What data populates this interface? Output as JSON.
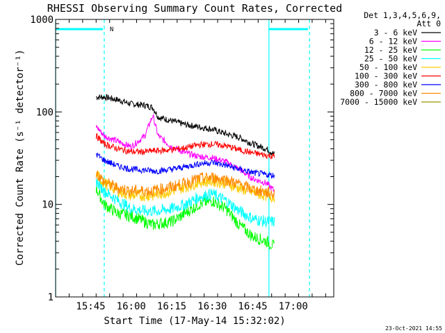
{
  "chart_data": {
    "type": "line",
    "title": "RHESSI Observing Summary Count Rates, Corrected",
    "xlabel": "Start Time (17-May-14 15:32:02)",
    "ylabel": "Corrected Count Rate (s⁻¹ detector⁻¹)",
    "y_scale": "log",
    "ylim": [
      1,
      1000
    ],
    "xlim": [
      "15:32",
      "17:15"
    ],
    "x_ticks": [
      "15:45",
      "16:00",
      "16:15",
      "16:30",
      "16:45",
      "17:00"
    ],
    "y_ticks": [
      "1",
      "10",
      "100",
      "1000"
    ],
    "legend_header": [
      "Det 1,3,4,5,6,9,",
      "Att 0"
    ],
    "legend_position": "right",
    "grid": false,
    "annotations": {
      "night_marker": "N",
      "dashed_lines": [
        "15:50",
        "17:06"
      ],
      "solid_lines": [
        "15:32",
        "16:51"
      ],
      "cyan_bars": [
        [
          "15:32",
          "15:50"
        ],
        [
          "16:51",
          "17:06"
        ]
      ]
    },
    "x": [
      "15:47",
      "15:50",
      "15:55",
      "16:00",
      "16:05",
      "16:08",
      "16:10",
      "16:15",
      "16:20",
      "16:25",
      "16:30",
      "16:35",
      "16:40",
      "16:45",
      "16:50",
      "16:53"
    ],
    "series": [
      {
        "name": "3 - 6 keV",
        "color": "#000000",
        "values": [
          145,
          145,
          135,
          122,
          118,
          112,
          88,
          80,
          73,
          69,
          65,
          58,
          53,
          45,
          40,
          35
        ]
      },
      {
        "name": "6 - 12 keV",
        "color": "#ff00ff",
        "values": [
          70,
          55,
          48,
          42,
          55,
          92,
          55,
          42,
          36,
          33,
          32,
          29,
          24,
          19,
          17,
          14
        ]
      },
      {
        "name": "12 - 25 keV",
        "color": "#00ff00",
        "values": [
          15,
          10,
          8,
          7.5,
          6.5,
          6,
          6.2,
          6.5,
          8,
          10,
          11,
          9,
          6,
          4.5,
          4,
          3.5
        ]
      },
      {
        "name": "25 - 50 keV",
        "color": "#00ffff",
        "values": [
          18,
          14,
          11,
          9,
          8.5,
          8.5,
          8.5,
          9,
          10,
          12,
          13,
          11,
          8.5,
          7,
          6.5,
          6.5
        ]
      },
      {
        "name": "50 - 100 keV",
        "color": "#ffcc00",
        "values": [
          21,
          17,
          14,
          12.5,
          12.5,
          12.5,
          13,
          14,
          15.5,
          17.5,
          18,
          17,
          15,
          13.5,
          12.5,
          12
        ]
      },
      {
        "name": "100 - 300 keV",
        "color": "#ff0000",
        "values": [
          55,
          45,
          40,
          37,
          37,
          38,
          38,
          39,
          41,
          44,
          45,
          43,
          39,
          36,
          34,
          33
        ]
      },
      {
        "name": "300 - 800 keV",
        "color": "#0000ff",
        "values": [
          35,
          30,
          26,
          24,
          23.5,
          23,
          23,
          24,
          25.5,
          27.5,
          28.5,
          26.5,
          24,
          22,
          21,
          20.5
        ]
      },
      {
        "name": "800 - 7000 keV",
        "color": "#ff8800",
        "values": [
          22,
          17.5,
          15,
          14,
          14,
          14,
          14.5,
          15.5,
          17,
          19,
          19.5,
          18.5,
          16.5,
          14.5,
          13.5,
          13
        ]
      },
      {
        "name": "7000 - 15000 keV",
        "color": "#999900",
        "values": [
          null,
          null,
          null,
          null,
          null,
          null,
          null,
          null,
          null,
          null,
          null,
          null,
          null,
          null,
          null,
          null
        ]
      }
    ]
  },
  "footer": {
    "timestamp": "23-Oct-2021 14:55"
  },
  "colors": {
    "axes": "#000000",
    "cyan_marker": "#00ffff",
    "background": "#ffffff"
  }
}
